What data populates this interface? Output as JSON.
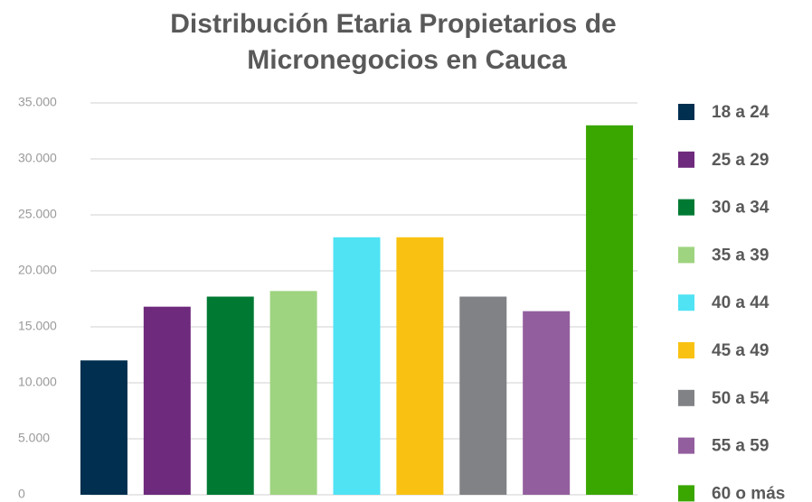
{
  "chart_data": {
    "type": "bar",
    "title": [
      "Distribución Etaria Propietarios de",
      "Micronegocios en Cauca"
    ],
    "categories": [
      "18 a 24",
      "25 a 29",
      "30 a 34",
      "35 a 39",
      "40 a 44",
      "45 a 49",
      "50 a 54",
      "55 a 59",
      "60 o más"
    ],
    "values": [
      12000,
      16800,
      17700,
      18200,
      23000,
      23000,
      17700,
      16400,
      33000
    ],
    "colors": [
      "#002f4f",
      "#6e2a7c",
      "#007a33",
      "#9ed47f",
      "#4fe3f4",
      "#f9c212",
      "#818285",
      "#935e9e",
      "#3aa600"
    ],
    "ylim": [
      0,
      35000
    ],
    "yticks": [
      0,
      {
        "value": 5000,
        "label": "5.000"
      },
      {
        "value": 10000,
        "label": "10.000"
      },
      {
        "value": 15000,
        "label": "15.000"
      },
      {
        "value": 20000,
        "label": "20.000"
      },
      {
        "value": 25000,
        "label": "25.000"
      },
      {
        "value": 30000,
        "label": "30.000"
      },
      {
        "value": 35000,
        "label": "35.000"
      }
    ],
    "grid": true,
    "legend": "right"
  }
}
